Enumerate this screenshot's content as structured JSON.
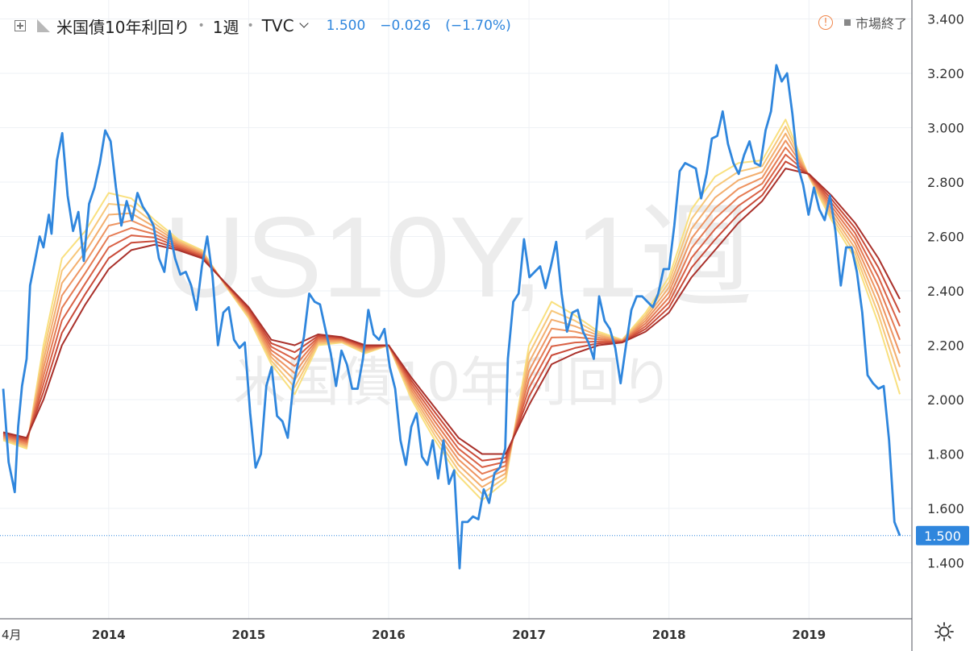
{
  "header": {
    "symbol_name": "米国債10年利回り",
    "interval": "1週",
    "source": "TVC",
    "last": "1.500",
    "change": "−0.026",
    "change_pct": "(−1.70%)"
  },
  "status": {
    "market_label": "市場終了"
  },
  "watermark": {
    "symbol": "US10Y, 1週",
    "name": "米国債10年利回り"
  },
  "colors": {
    "price": "#2f86dd",
    "ribbon": [
      "#f9e07f",
      "#f7c77a",
      "#f3ae6e",
      "#ee9461",
      "#e57a52",
      "#d96145",
      "#c94a38",
      "#a9302a"
    ],
    "last_price_tag": "#2f86dd"
  },
  "chart_data": {
    "type": "line",
    "title": "米国債10年利回り",
    "x_axis": {
      "type": "date",
      "tick_labels": [
        "4月",
        "2014",
        "2015",
        "2016",
        "2017",
        "2018",
        "2019"
      ],
      "range": [
        "2013-04",
        "2019-09"
      ]
    },
    "y_axis": {
      "position": "right",
      "ylim": [
        1.2,
        3.5
      ],
      "tick_labels": [
        "1.400",
        "1.600",
        "1.800",
        "2.000",
        "2.200",
        "2.400",
        "2.600",
        "2.800",
        "3.000",
        "3.200",
        "3.400"
      ]
    },
    "last_price": {
      "value": 1.5,
      "label": "1.500"
    },
    "grid": true,
    "series": [
      {
        "style": "price",
        "points": [
          [
            "2013-04-01",
            2.04
          ],
          [
            "2013-04-15",
            1.77
          ],
          [
            "2013-05-01",
            1.66
          ],
          [
            "2013-05-10",
            1.9
          ],
          [
            "2013-05-20",
            2.05
          ],
          [
            "2013-06-01",
            2.15
          ],
          [
            "2013-06-10",
            2.42
          ],
          [
            "2013-06-24",
            2.52
          ],
          [
            "2013-07-05",
            2.6
          ],
          [
            "2013-07-15",
            2.56
          ],
          [
            "2013-07-29",
            2.68
          ],
          [
            "2013-08-05",
            2.61
          ],
          [
            "2013-08-19",
            2.88
          ],
          [
            "2013-09-02",
            2.98
          ],
          [
            "2013-09-16",
            2.75
          ],
          [
            "2013-09-30",
            2.62
          ],
          [
            "2013-10-14",
            2.69
          ],
          [
            "2013-10-28",
            2.51
          ],
          [
            "2013-11-11",
            2.72
          ],
          [
            "2013-11-25",
            2.78
          ],
          [
            "2013-12-09",
            2.87
          ],
          [
            "2013-12-23",
            2.99
          ],
          [
            "2014-01-06",
            2.95
          ],
          [
            "2014-01-20",
            2.78
          ],
          [
            "2014-02-03",
            2.64
          ],
          [
            "2014-02-17",
            2.73
          ],
          [
            "2014-03-03",
            2.66
          ],
          [
            "2014-03-17",
            2.76
          ],
          [
            "2014-03-31",
            2.71
          ],
          [
            "2014-04-14",
            2.68
          ],
          [
            "2014-04-28",
            2.64
          ],
          [
            "2014-05-12",
            2.52
          ],
          [
            "2014-05-26",
            2.47
          ],
          [
            "2014-06-09",
            2.62
          ],
          [
            "2014-06-23",
            2.52
          ],
          [
            "2014-07-07",
            2.46
          ],
          [
            "2014-07-21",
            2.47
          ],
          [
            "2014-08-04",
            2.42
          ],
          [
            "2014-08-18",
            2.33
          ],
          [
            "2014-09-01",
            2.49
          ],
          [
            "2014-09-15",
            2.6
          ],
          [
            "2014-09-29",
            2.45
          ],
          [
            "2014-10-13",
            2.2
          ],
          [
            "2014-10-27",
            2.32
          ],
          [
            "2014-11-10",
            2.34
          ],
          [
            "2014-11-24",
            2.22
          ],
          [
            "2014-12-08",
            2.19
          ],
          [
            "2014-12-22",
            2.21
          ],
          [
            "2015-01-05",
            1.95
          ],
          [
            "2015-01-19",
            1.75
          ],
          [
            "2015-02-02",
            1.8
          ],
          [
            "2015-02-16",
            2.05
          ],
          [
            "2015-03-02",
            2.12
          ],
          [
            "2015-03-16",
            1.94
          ],
          [
            "2015-03-30",
            1.92
          ],
          [
            "2015-04-13",
            1.86
          ],
          [
            "2015-04-27",
            2.05
          ],
          [
            "2015-05-11",
            2.14
          ],
          [
            "2015-05-25",
            2.23
          ],
          [
            "2015-06-08",
            2.39
          ],
          [
            "2015-06-22",
            2.36
          ],
          [
            "2015-07-06",
            2.35
          ],
          [
            "2015-07-20",
            2.26
          ],
          [
            "2015-08-03",
            2.17
          ],
          [
            "2015-08-17",
            2.05
          ],
          [
            "2015-08-31",
            2.18
          ],
          [
            "2015-09-14",
            2.13
          ],
          [
            "2015-09-28",
            2.04
          ],
          [
            "2015-10-12",
            2.04
          ],
          [
            "2015-10-26",
            2.15
          ],
          [
            "2015-11-09",
            2.33
          ],
          [
            "2015-11-23",
            2.24
          ],
          [
            "2015-12-07",
            2.22
          ],
          [
            "2015-12-21",
            2.26
          ],
          [
            "2016-01-04",
            2.12
          ],
          [
            "2016-01-18",
            2.04
          ],
          [
            "2016-02-01",
            1.85
          ],
          [
            "2016-02-15",
            1.76
          ],
          [
            "2016-02-29",
            1.9
          ],
          [
            "2016-03-14",
            1.95
          ],
          [
            "2016-03-28",
            1.79
          ],
          [
            "2016-04-11",
            1.76
          ],
          [
            "2016-04-25",
            1.85
          ],
          [
            "2016-05-09",
            1.71
          ],
          [
            "2016-05-23",
            1.85
          ],
          [
            "2016-06-06",
            1.69
          ],
          [
            "2016-06-20",
            1.74
          ],
          [
            "2016-07-04",
            1.38
          ],
          [
            "2016-07-11",
            1.55
          ],
          [
            "2016-07-25",
            1.55
          ],
          [
            "2016-08-08",
            1.57
          ],
          [
            "2016-08-22",
            1.56
          ],
          [
            "2016-09-05",
            1.67
          ],
          [
            "2016-09-19",
            1.62
          ],
          [
            "2016-10-03",
            1.73
          ],
          [
            "2016-10-17",
            1.75
          ],
          [
            "2016-10-31",
            1.82
          ],
          [
            "2016-11-07",
            2.15
          ],
          [
            "2016-11-21",
            2.36
          ],
          [
            "2016-12-05",
            2.39
          ],
          [
            "2016-12-19",
            2.59
          ],
          [
            "2017-01-02",
            2.45
          ],
          [
            "2017-01-16",
            2.47
          ],
          [
            "2017-01-30",
            2.49
          ],
          [
            "2017-02-13",
            2.41
          ],
          [
            "2017-02-27",
            2.49
          ],
          [
            "2017-03-13",
            2.58
          ],
          [
            "2017-03-27",
            2.39
          ],
          [
            "2017-04-10",
            2.25
          ],
          [
            "2017-04-24",
            2.32
          ],
          [
            "2017-05-08",
            2.33
          ],
          [
            "2017-05-22",
            2.25
          ],
          [
            "2017-06-05",
            2.21
          ],
          [
            "2017-06-19",
            2.15
          ],
          [
            "2017-07-03",
            2.38
          ],
          [
            "2017-07-17",
            2.29
          ],
          [
            "2017-07-31",
            2.26
          ],
          [
            "2017-08-14",
            2.19
          ],
          [
            "2017-08-28",
            2.06
          ],
          [
            "2017-09-11",
            2.2
          ],
          [
            "2017-09-25",
            2.33
          ],
          [
            "2017-10-09",
            2.38
          ],
          [
            "2017-10-23",
            2.38
          ],
          [
            "2017-11-06",
            2.36
          ],
          [
            "2017-11-20",
            2.34
          ],
          [
            "2017-12-04",
            2.39
          ],
          [
            "2017-12-18",
            2.48
          ],
          [
            "2018-01-01",
            2.48
          ],
          [
            "2018-01-15",
            2.64
          ],
          [
            "2018-01-29",
            2.84
          ],
          [
            "2018-02-12",
            2.87
          ],
          [
            "2018-02-26",
            2.86
          ],
          [
            "2018-03-12",
            2.85
          ],
          [
            "2018-03-26",
            2.74
          ],
          [
            "2018-04-09",
            2.83
          ],
          [
            "2018-04-23",
            2.96
          ],
          [
            "2018-05-07",
            2.97
          ],
          [
            "2018-05-21",
            3.06
          ],
          [
            "2018-06-04",
            2.94
          ],
          [
            "2018-06-18",
            2.87
          ],
          [
            "2018-07-02",
            2.83
          ],
          [
            "2018-07-16",
            2.9
          ],
          [
            "2018-07-30",
            2.95
          ],
          [
            "2018-08-13",
            2.87
          ],
          [
            "2018-08-27",
            2.86
          ],
          [
            "2018-09-10",
            2.99
          ],
          [
            "2018-09-24",
            3.06
          ],
          [
            "2018-10-08",
            3.23
          ],
          [
            "2018-10-22",
            3.17
          ],
          [
            "2018-11-05",
            3.2
          ],
          [
            "2018-11-19",
            3.05
          ],
          [
            "2018-12-03",
            2.86
          ],
          [
            "2018-12-17",
            2.79
          ],
          [
            "2018-12-31",
            2.68
          ],
          [
            "2019-01-14",
            2.78
          ],
          [
            "2019-01-28",
            2.7
          ],
          [
            "2019-02-11",
            2.66
          ],
          [
            "2019-02-25",
            2.75
          ],
          [
            "2019-03-11",
            2.62
          ],
          [
            "2019-03-25",
            2.42
          ],
          [
            "2019-04-08",
            2.56
          ],
          [
            "2019-04-22",
            2.56
          ],
          [
            "2019-05-06",
            2.47
          ],
          [
            "2019-05-20",
            2.32
          ],
          [
            "2019-06-03",
            2.09
          ],
          [
            "2019-06-17",
            2.06
          ],
          [
            "2019-07-01",
            2.04
          ],
          [
            "2019-07-15",
            2.05
          ],
          [
            "2019-07-29",
            1.85
          ],
          [
            "2019-08-12",
            1.55
          ],
          [
            "2019-08-26",
            1.5
          ]
        ]
      },
      {
        "style": "ribbon-fastest",
        "points": [
          [
            "2013-04-01",
            1.85
          ],
          [
            "2013-06-01",
            1.82
          ],
          [
            "2013-07-15",
            2.2
          ],
          [
            "2013-09-01",
            2.52
          ],
          [
            "2013-11-01",
            2.62
          ],
          [
            "2014-01-01",
            2.76
          ],
          [
            "2014-03-01",
            2.74
          ],
          [
            "2014-05-01",
            2.66
          ],
          [
            "2014-07-01",
            2.59
          ],
          [
            "2014-09-01",
            2.55
          ],
          [
            "2014-11-01",
            2.42
          ],
          [
            "2015-01-01",
            2.3
          ],
          [
            "2015-03-01",
            2.13
          ],
          [
            "2015-05-01",
            2.02
          ],
          [
            "2015-07-01",
            2.2
          ],
          [
            "2015-09-01",
            2.21
          ],
          [
            "2015-11-01",
            2.17
          ],
          [
            "2016-01-01",
            2.2
          ],
          [
            "2016-03-01",
            2.0
          ],
          [
            "2016-05-01",
            1.85
          ],
          [
            "2016-07-01",
            1.72
          ],
          [
            "2016-09-01",
            1.63
          ],
          [
            "2016-11-01",
            1.7
          ],
          [
            "2017-01-01",
            2.2
          ],
          [
            "2017-03-01",
            2.36
          ],
          [
            "2017-05-01",
            2.31
          ],
          [
            "2017-07-01",
            2.25
          ],
          [
            "2017-09-01",
            2.22
          ],
          [
            "2017-11-01",
            2.32
          ],
          [
            "2018-01-01",
            2.45
          ],
          [
            "2018-03-01",
            2.7
          ],
          [
            "2018-05-01",
            2.82
          ],
          [
            "2018-07-01",
            2.87
          ],
          [
            "2018-09-01",
            2.88
          ],
          [
            "2018-11-01",
            3.03
          ],
          [
            "2019-01-01",
            2.82
          ],
          [
            "2019-03-01",
            2.66
          ],
          [
            "2019-05-01",
            2.52
          ],
          [
            "2019-07-01",
            2.28
          ],
          [
            "2019-08-26",
            2.02
          ]
        ]
      },
      {
        "style": "ribbon-slowest",
        "points": [
          [
            "2013-04-01",
            1.88
          ],
          [
            "2013-06-01",
            1.86
          ],
          [
            "2013-07-15",
            2.0
          ],
          [
            "2013-09-01",
            2.2
          ],
          [
            "2013-11-01",
            2.35
          ],
          [
            "2014-01-01",
            2.48
          ],
          [
            "2014-03-01",
            2.55
          ],
          [
            "2014-05-01",
            2.57
          ],
          [
            "2014-07-01",
            2.55
          ],
          [
            "2014-09-01",
            2.52
          ],
          [
            "2014-11-01",
            2.43
          ],
          [
            "2015-01-01",
            2.34
          ],
          [
            "2015-03-01",
            2.22
          ],
          [
            "2015-05-01",
            2.2
          ],
          [
            "2015-07-01",
            2.24
          ],
          [
            "2015-09-01",
            2.23
          ],
          [
            "2015-11-01",
            2.2
          ],
          [
            "2016-01-01",
            2.2
          ],
          [
            "2016-03-01",
            2.08
          ],
          [
            "2016-05-01",
            1.97
          ],
          [
            "2016-07-01",
            1.86
          ],
          [
            "2016-09-01",
            1.8
          ],
          [
            "2016-11-01",
            1.8
          ],
          [
            "2017-01-01",
            1.98
          ],
          [
            "2017-03-01",
            2.13
          ],
          [
            "2017-05-01",
            2.17
          ],
          [
            "2017-07-01",
            2.2
          ],
          [
            "2017-09-01",
            2.21
          ],
          [
            "2017-11-01",
            2.25
          ],
          [
            "2018-01-01",
            2.32
          ],
          [
            "2018-03-01",
            2.45
          ],
          [
            "2018-05-01",
            2.55
          ],
          [
            "2018-07-01",
            2.65
          ],
          [
            "2018-09-01",
            2.73
          ],
          [
            "2018-11-01",
            2.85
          ],
          [
            "2019-01-01",
            2.83
          ],
          [
            "2019-03-01",
            2.75
          ],
          [
            "2019-05-01",
            2.65
          ],
          [
            "2019-07-01",
            2.52
          ],
          [
            "2019-08-26",
            2.37
          ]
        ]
      }
    ]
  }
}
